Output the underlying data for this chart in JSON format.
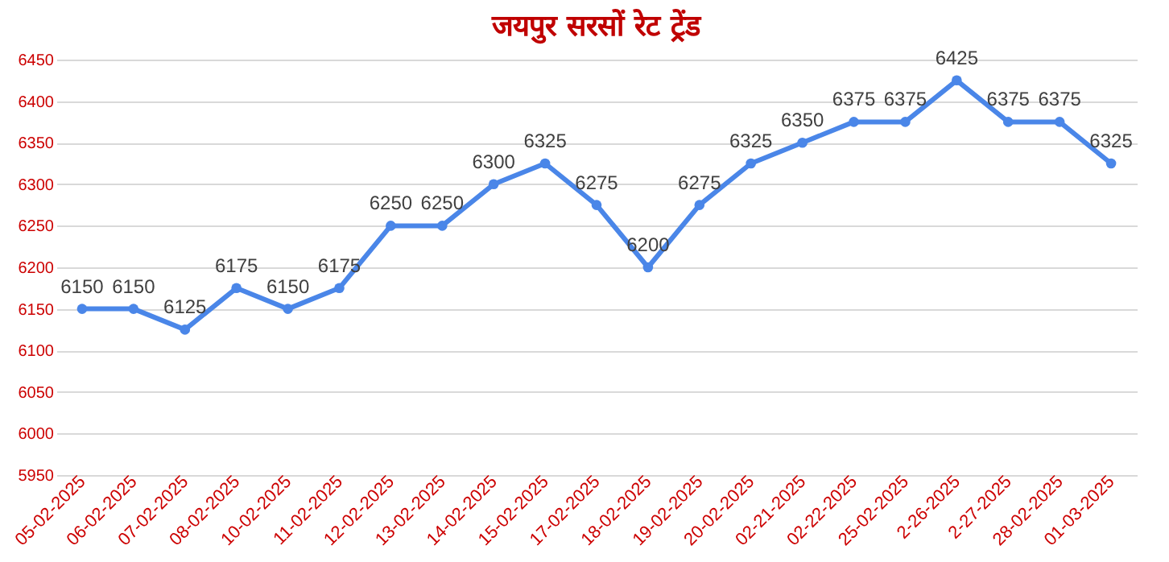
{
  "chart_data": {
    "type": "line",
    "title": "जयपुर सरसों रेट ट्रेंड",
    "categories": [
      "05-02-2025",
      "06-02-2025",
      "07-02-2025",
      "08-02-2025",
      "10-02-2025",
      "11-02-2025",
      "12-02-2025",
      "13-02-2025",
      "14-02-2025",
      "15-02-2025",
      "17-02-2025",
      "18-02-2025",
      "19-02-2025",
      "20-02-2025",
      "02-21-2025",
      "02-22-2025",
      "25-02-2025",
      "2-26-2025",
      "2-27-2025",
      "28-02-2025",
      "01-03-2025"
    ],
    "series": [
      {
        "color": "#4a86e8",
        "values": [
          6150,
          6150,
          6125,
          6175,
          6150,
          6175,
          6250,
          6250,
          6300,
          6325,
          6275,
          6200,
          6275,
          6325,
          6350,
          6375,
          6375,
          6425,
          6375,
          6375,
          6325
        ]
      }
    ],
    "ylim": [
      5950,
      6450
    ],
    "yticks": [
      5950,
      6000,
      6050,
      6100,
      6150,
      6200,
      6250,
      6300,
      6350,
      6400,
      6450
    ],
    "grid": "y",
    "marker": "circle",
    "line_style": "solid",
    "data_labels": true,
    "legend": false
  }
}
